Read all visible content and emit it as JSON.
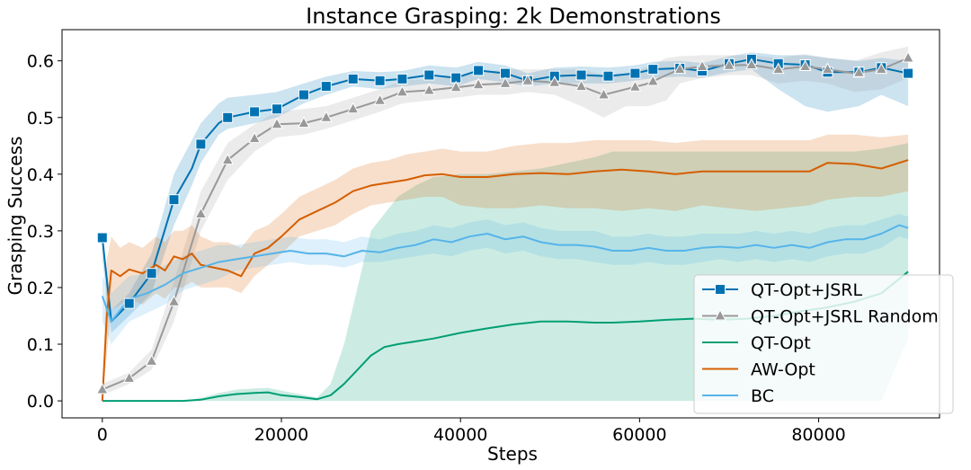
{
  "chart_data": {
    "type": "line",
    "title": "Instance Grasping: 2k Demonstrations",
    "xlabel": "Steps",
    "ylabel": "Grasping Success",
    "xlim": [
      -4500,
      93500
    ],
    "ylim": [
      -0.03,
      0.655
    ],
    "xticks": [
      0,
      20000,
      40000,
      60000,
      80000
    ],
    "yticks": [
      0.0,
      0.1,
      0.2,
      0.3,
      0.4,
      0.5,
      0.6
    ],
    "x_tick_labels": [
      "0",
      "20000",
      "40000",
      "60000",
      "80000"
    ],
    "y_tick_labels": [
      "0.0",
      "0.1",
      "0.2",
      "0.3",
      "0.4",
      "0.5",
      "0.6"
    ],
    "grid": false,
    "legend_position": "lower-right",
    "series": [
      {
        "name": "QT-Opt+JSRL",
        "color": "#0072b2",
        "marker": "square",
        "x": [
          0,
          1000,
          3000,
          5500,
          8000,
          10000,
          11000,
          13000,
          14000,
          17000,
          19500,
          22500,
          25000,
          28000,
          31000,
          33500,
          36500,
          39500,
          42000,
          45000,
          47500,
          50500,
          53500,
          56500,
          59500,
          61500,
          64500,
          67000,
          70000,
          72500,
          75500,
          78500,
          81000,
          84500,
          87000,
          90000
        ],
        "y": [
          0.288,
          0.14,
          0.172,
          0.225,
          0.355,
          0.41,
          0.453,
          0.49,
          0.5,
          0.51,
          0.515,
          0.54,
          0.555,
          0.568,
          0.565,
          0.568,
          0.575,
          0.57,
          0.583,
          0.578,
          0.565,
          0.573,
          0.575,
          0.573,
          0.578,
          0.585,
          0.587,
          0.582,
          0.595,
          0.603,
          0.595,
          0.593,
          0.58,
          0.58,
          0.588,
          0.578
        ],
        "markers_x": [
          0,
          3000,
          5500,
          8000,
          11000,
          14000,
          17000,
          19500,
          22500,
          25000,
          28000,
          31000,
          33500,
          36500,
          39500,
          42000,
          45000,
          47500,
          50500,
          53500,
          56500,
          59500,
          61500,
          64500,
          67000,
          70000,
          72500,
          75500,
          78500,
          81000,
          84500,
          87000,
          90000
        ],
        "lower": [
          0.25,
          0.12,
          0.15,
          0.19,
          0.31,
          0.38,
          0.42,
          0.47,
          0.48,
          0.49,
          0.5,
          0.525,
          0.54,
          0.555,
          0.55,
          0.555,
          0.56,
          0.555,
          0.568,
          0.562,
          0.555,
          0.56,
          0.56,
          0.56,
          0.565,
          0.57,
          0.572,
          0.57,
          0.58,
          0.585,
          0.55,
          0.52,
          0.51,
          0.52,
          0.54,
          0.52
        ],
        "upper": [
          0.3,
          0.16,
          0.19,
          0.26,
          0.4,
          0.46,
          0.49,
          0.525,
          0.535,
          0.54,
          0.545,
          0.56,
          0.572,
          0.582,
          0.58,
          0.582,
          0.592,
          0.588,
          0.598,
          0.592,
          0.578,
          0.588,
          0.59,
          0.588,
          0.592,
          0.598,
          0.6,
          0.596,
          0.608,
          0.615,
          0.61,
          0.61,
          0.605,
          0.6,
          0.605,
          0.6
        ]
      },
      {
        "name": "QT-Opt+JSRL Random",
        "color": "#999999",
        "marker": "triangle",
        "x": [
          0,
          3000,
          5500,
          8000,
          11000,
          14000,
          17000,
          19500,
          22500,
          25000,
          28000,
          31000,
          33500,
          36500,
          39500,
          42000,
          45000,
          47500,
          50500,
          53500,
          56000,
          58500,
          61000,
          63000,
          64500,
          67000,
          70000,
          72500,
          75500,
          78500,
          81000,
          84000,
          87000,
          90000
        ],
        "y": [
          0.02,
          0.04,
          0.07,
          0.175,
          0.33,
          0.425,
          0.463,
          0.488,
          0.49,
          0.5,
          0.515,
          0.53,
          0.545,
          0.548,
          0.553,
          0.558,
          0.56,
          0.565,
          0.562,
          0.555,
          0.54,
          0.55,
          0.56,
          0.575,
          0.585,
          0.59,
          0.592,
          0.593,
          0.585,
          0.59,
          0.585,
          0.578,
          0.585,
          0.605
        ],
        "markers_x": [
          0,
          3000,
          5500,
          8000,
          11000,
          14000,
          17000,
          19500,
          22500,
          25000,
          28000,
          31000,
          33500,
          36500,
          39500,
          42000,
          45000,
          47500,
          50500,
          53500,
          56000,
          59500,
          61500,
          64500,
          67000,
          70000,
          72500,
          75500,
          78500,
          81000,
          84500,
          87000,
          90000
        ],
        "lower": [
          0.01,
          0.03,
          0.055,
          0.14,
          0.3,
          0.39,
          0.44,
          0.465,
          0.47,
          0.48,
          0.495,
          0.51,
          0.525,
          0.53,
          0.535,
          0.54,
          0.54,
          0.545,
          0.54,
          0.52,
          0.5,
          0.52,
          0.52,
          0.53,
          0.56,
          0.57,
          0.575,
          0.575,
          0.56,
          0.565,
          0.56,
          0.545,
          0.55,
          0.57
        ],
        "upper": [
          0.03,
          0.05,
          0.09,
          0.21,
          0.37,
          0.455,
          0.488,
          0.51,
          0.515,
          0.52,
          0.535,
          0.55,
          0.565,
          0.568,
          0.572,
          0.578,
          0.585,
          0.585,
          0.585,
          0.585,
          0.575,
          0.578,
          0.59,
          0.605,
          0.608,
          0.61,
          0.61,
          0.61,
          0.605,
          0.612,
          0.605,
          0.6,
          0.615,
          0.625
        ]
      },
      {
        "name": "QT-Opt",
        "color": "#009e73",
        "marker": "none",
        "x": [
          0,
          3000,
          6000,
          9000,
          11000,
          13000,
          15000,
          17000,
          18500,
          20000,
          22000,
          24000,
          25500,
          27000,
          28500,
          30000,
          31500,
          33000,
          35000,
          37000,
          40000,
          43000,
          46000,
          49000,
          52000,
          55000,
          57000,
          60000,
          63000,
          66000,
          69000,
          72000,
          75000,
          78000,
          81000,
          84000,
          87000,
          90000
        ],
        "y": [
          0.0,
          0.0,
          0.0,
          0.0,
          0.002,
          0.008,
          0.012,
          0.014,
          0.015,
          0.01,
          0.007,
          0.003,
          0.01,
          0.03,
          0.055,
          0.08,
          0.095,
          0.1,
          0.105,
          0.11,
          0.12,
          0.128,
          0.135,
          0.14,
          0.14,
          0.138,
          0.138,
          0.14,
          0.143,
          0.145,
          0.143,
          0.145,
          0.15,
          0.158,
          0.165,
          0.175,
          0.19,
          0.228
        ],
        "lower": [
          0.0,
          0.0,
          0.0,
          0.0,
          0.0,
          0.0,
          0.0,
          0.0,
          0.0,
          0.0,
          0.0,
          0.0,
          0.0,
          0.0,
          0.0,
          0.0,
          0.0,
          0.0,
          0.0,
          0.0,
          0.0,
          0.0,
          0.0,
          0.0,
          0.0,
          0.0,
          0.0,
          0.0,
          0.0,
          0.0,
          0.0,
          0.0,
          0.0,
          0.0,
          0.0,
          0.0,
          0.0,
          0.11
        ],
        "upper": [
          0.0,
          0.0,
          0.0,
          0.0,
          0.005,
          0.014,
          0.02,
          0.022,
          0.023,
          0.018,
          0.012,
          0.006,
          0.03,
          0.1,
          0.2,
          0.3,
          0.33,
          0.36,
          0.38,
          0.395,
          0.4,
          0.4,
          0.405,
          0.41,
          0.42,
          0.43,
          0.44,
          0.44,
          0.44,
          0.44,
          0.44,
          0.44,
          0.44,
          0.44,
          0.44,
          0.44,
          0.445,
          0.455
        ]
      },
      {
        "name": "AW-Opt",
        "color": "#d55e00",
        "marker": "none",
        "x": [
          0,
          500,
          1000,
          2000,
          3000,
          4500,
          6000,
          7000,
          8000,
          9000,
          10000,
          11000,
          12500,
          14000,
          15500,
          17000,
          18500,
          20000,
          22000,
          24000,
          26000,
          28000,
          30000,
          32000,
          34000,
          36000,
          38000,
          40000,
          43000,
          46000,
          49000,
          52000,
          55000,
          58000,
          61000,
          64000,
          67000,
          70000,
          73000,
          76000,
          79000,
          81000,
          84000,
          87000,
          90000
        ],
        "y": [
          0.0,
          0.15,
          0.23,
          0.22,
          0.232,
          0.225,
          0.24,
          0.23,
          0.255,
          0.25,
          0.26,
          0.24,
          0.235,
          0.23,
          0.22,
          0.26,
          0.27,
          0.29,
          0.32,
          0.335,
          0.35,
          0.37,
          0.38,
          0.385,
          0.39,
          0.398,
          0.4,
          0.395,
          0.395,
          0.4,
          0.402,
          0.4,
          0.405,
          0.408,
          0.405,
          0.4,
          0.405,
          0.405,
          0.405,
          0.405,
          0.405,
          0.42,
          0.418,
          0.41,
          0.425
        ],
        "lower": [
          0.0,
          0.08,
          0.16,
          0.17,
          0.18,
          0.17,
          0.19,
          0.18,
          0.2,
          0.2,
          0.21,
          0.2,
          0.2,
          0.2,
          0.19,
          0.22,
          0.24,
          0.26,
          0.29,
          0.3,
          0.31,
          0.33,
          0.345,
          0.35,
          0.355,
          0.36,
          0.36,
          0.345,
          0.34,
          0.34,
          0.345,
          0.34,
          0.34,
          0.335,
          0.34,
          0.335,
          0.345,
          0.34,
          0.335,
          0.34,
          0.345,
          0.355,
          0.36,
          0.36,
          0.37
        ],
        "upper": [
          0.0,
          0.25,
          0.29,
          0.27,
          0.28,
          0.27,
          0.29,
          0.28,
          0.3,
          0.3,
          0.31,
          0.29,
          0.28,
          0.28,
          0.27,
          0.3,
          0.31,
          0.33,
          0.36,
          0.375,
          0.39,
          0.41,
          0.42,
          0.425,
          0.435,
          0.44,
          0.445,
          0.44,
          0.44,
          0.45,
          0.455,
          0.455,
          0.46,
          0.46,
          0.46,
          0.455,
          0.46,
          0.46,
          0.46,
          0.46,
          0.46,
          0.47,
          0.47,
          0.465,
          0.47
        ]
      },
      {
        "name": "BC",
        "color": "#56b4e9",
        "marker": "none",
        "x": [
          0,
          1000,
          3000,
          5000,
          7000,
          9000,
          11000,
          13000,
          15000,
          17000,
          19000,
          21000,
          23000,
          25000,
          27000,
          29000,
          31000,
          33000,
          35000,
          37000,
          39000,
          41000,
          43000,
          45000,
          47000,
          49000,
          51000,
          53000,
          55000,
          57000,
          59000,
          61000,
          63000,
          65000,
          67000,
          69000,
          71000,
          73000,
          75000,
          77000,
          79000,
          81000,
          83000,
          85000,
          87000,
          89000,
          90000
        ],
        "y": [
          0.185,
          0.14,
          0.18,
          0.19,
          0.205,
          0.225,
          0.235,
          0.245,
          0.25,
          0.255,
          0.26,
          0.265,
          0.26,
          0.26,
          0.255,
          0.265,
          0.262,
          0.27,
          0.275,
          0.285,
          0.28,
          0.29,
          0.295,
          0.285,
          0.29,
          0.28,
          0.275,
          0.275,
          0.272,
          0.265,
          0.265,
          0.27,
          0.265,
          0.265,
          0.27,
          0.272,
          0.27,
          0.275,
          0.27,
          0.275,
          0.27,
          0.28,
          0.285,
          0.285,
          0.295,
          0.31,
          0.305
        ],
        "lower": [
          0.14,
          0.1,
          0.14,
          0.155,
          0.17,
          0.195,
          0.205,
          0.215,
          0.23,
          0.235,
          0.24,
          0.245,
          0.24,
          0.24,
          0.235,
          0.245,
          0.245,
          0.25,
          0.255,
          0.26,
          0.255,
          0.265,
          0.27,
          0.26,
          0.265,
          0.255,
          0.25,
          0.25,
          0.245,
          0.24,
          0.24,
          0.245,
          0.24,
          0.24,
          0.245,
          0.25,
          0.245,
          0.25,
          0.245,
          0.25,
          0.245,
          0.255,
          0.26,
          0.26,
          0.27,
          0.29,
          0.285
        ],
        "upper": [
          0.22,
          0.19,
          0.22,
          0.225,
          0.24,
          0.255,
          0.265,
          0.275,
          0.275,
          0.28,
          0.285,
          0.29,
          0.285,
          0.285,
          0.28,
          0.29,
          0.285,
          0.295,
          0.3,
          0.31,
          0.305,
          0.315,
          0.32,
          0.31,
          0.315,
          0.305,
          0.3,
          0.3,
          0.3,
          0.29,
          0.29,
          0.295,
          0.29,
          0.29,
          0.295,
          0.295,
          0.295,
          0.3,
          0.295,
          0.3,
          0.295,
          0.305,
          0.31,
          0.31,
          0.32,
          0.33,
          0.325
        ]
      }
    ]
  }
}
